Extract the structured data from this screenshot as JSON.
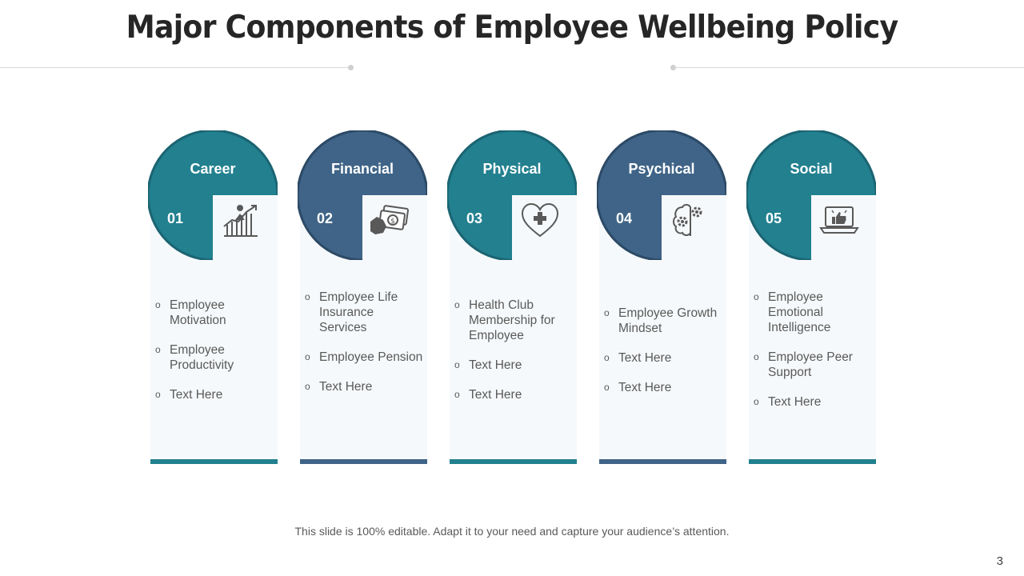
{
  "slide": {
    "title": "Major Components of Employee Wellbeing Policy",
    "footer": "This slide is 100% editable. Adapt it to your need and capture your audience’s attention.",
    "page_number": "3"
  },
  "colors": {
    "teal": "#22808f",
    "slate": "#3f6487"
  },
  "components": [
    {
      "name": "Career",
      "number": "01",
      "icon": "career-growth-chart-icon",
      "items": [
        "Employee Motivation",
        "Employee Productivity",
        "Text Here"
      ]
    },
    {
      "name": "Financial",
      "number": "02",
      "icon": "money-hand-icon",
      "items": [
        "Employee Life Insurance Services",
        "Employee Pension",
        "Text Here"
      ]
    },
    {
      "name": "Physical",
      "number": "03",
      "icon": "heart-health-icon",
      "items": [
        "Health Club Membership for Employee",
        "Text Here",
        "Text Here"
      ]
    },
    {
      "name": "Psychical",
      "number": "04",
      "icon": "brain-gears-icon",
      "items": [
        "Employee Growth Mindset",
        "Text Here",
        "Text Here"
      ]
    },
    {
      "name": "Social",
      "number": "05",
      "icon": "laptop-thumbs-up-icon",
      "items": [
        "Employee Emotional Intelligence",
        "Employee Peer Support",
        "Text Here"
      ]
    }
  ]
}
